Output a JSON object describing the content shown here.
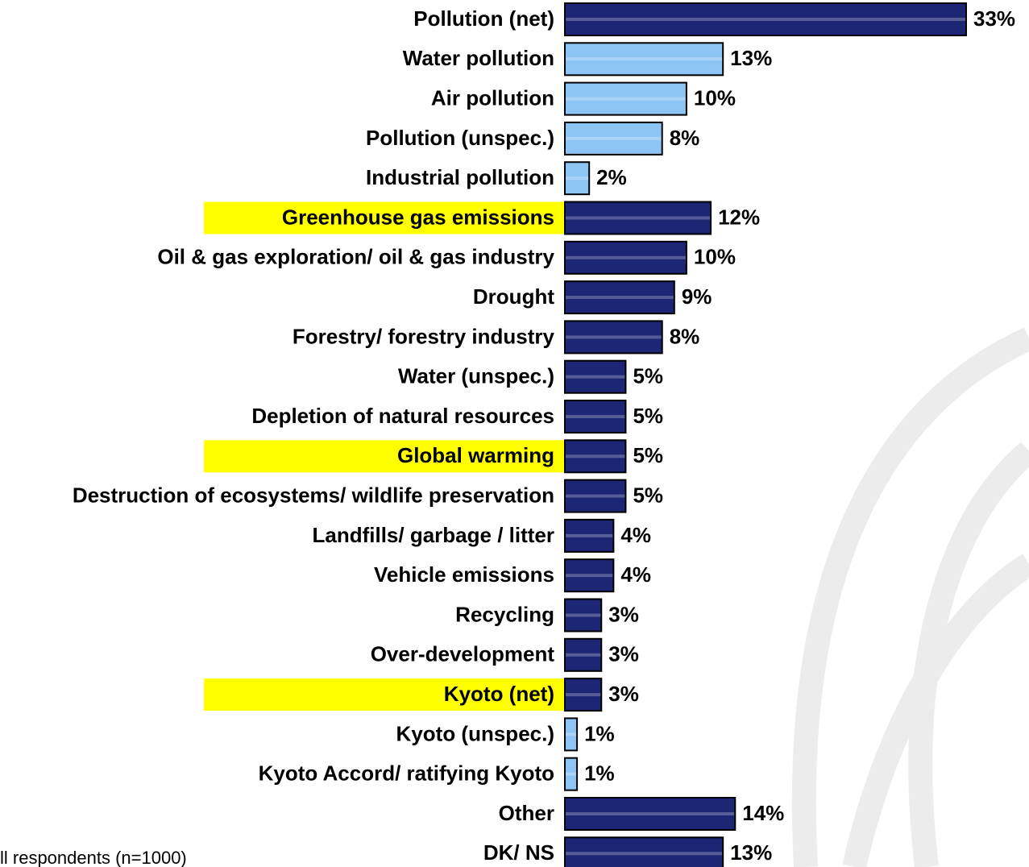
{
  "chart_data": {
    "type": "bar",
    "orientation": "horizontal",
    "categories": [
      "Pollution (net)",
      "Water pollution",
      "Air pollution",
      "Pollution (unspec.)",
      "Industrial pollution",
      "Greenhouse gas emissions",
      "Oil & gas exploration/ oil & gas industry",
      "Drought",
      "Forestry/ forestry industry",
      "Water (unspec.)",
      "Depletion of natural resources",
      "Global warming",
      "Destruction of ecosystems/ wildlife preservation",
      "Landfills/ garbage / litter",
      "Vehicle emissions",
      "Recycling",
      "Over-development",
      "Kyoto (net)",
      "Kyoto (unspec.)",
      "Kyoto Accord/ ratifying Kyoto",
      "Other",
      "DK/ NS"
    ],
    "values": [
      33,
      13,
      10,
      8,
      2,
      12,
      10,
      9,
      8,
      5,
      5,
      5,
      5,
      4,
      4,
      3,
      3,
      3,
      1,
      1,
      14,
      13
    ],
    "value_labels": [
      "33%",
      "13%",
      "10%",
      "8%",
      "2%",
      "12%",
      "10%",
      "9%",
      "8%",
      "5%",
      "5%",
      "5%",
      "5%",
      "4%",
      "4%",
      "3%",
      "3%",
      "3%",
      "1%",
      "1%",
      "14%",
      "13%"
    ],
    "colors": [
      "#1c2674",
      "#8cc4f4",
      "#8cc4f4",
      "#8cc4f4",
      "#8cc4f4",
      "#1c2674",
      "#1c2674",
      "#1c2674",
      "#1c2674",
      "#1c2674",
      "#1c2674",
      "#1c2674",
      "#1c2674",
      "#1c2674",
      "#1c2674",
      "#1c2674",
      "#1c2674",
      "#1c2674",
      "#8cc4f4",
      "#8cc4f4",
      "#1c2674",
      "#1c2674"
    ],
    "highlight": [
      false,
      false,
      false,
      false,
      false,
      true,
      false,
      false,
      false,
      false,
      false,
      true,
      false,
      false,
      false,
      false,
      false,
      true,
      false,
      false,
      false,
      false
    ],
    "highlight_color": "#ffff00",
    "footnote": "ll respondents (n=1000)"
  }
}
